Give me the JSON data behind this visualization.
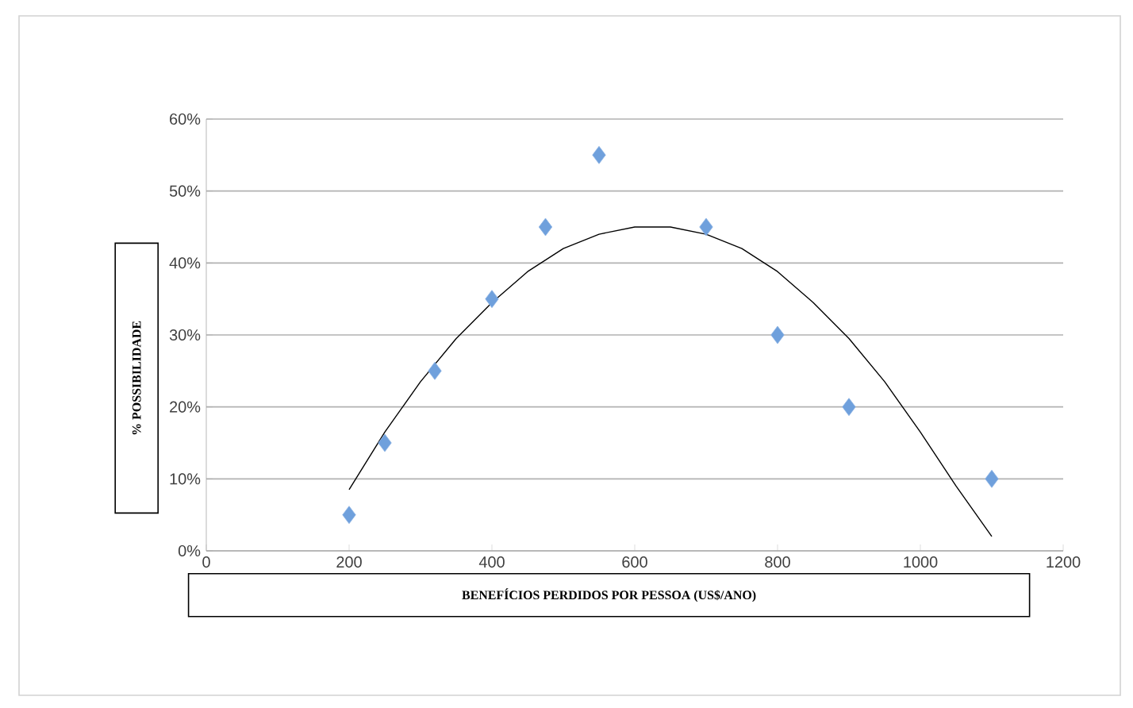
{
  "chart_data": {
    "type": "scatter",
    "xlabel": "BENEFÍCIOS PERDIDOS POR PESSOA (US$/ANO)",
    "ylabel": "% POSSIBILIDADE",
    "xlim": [
      0,
      1200
    ],
    "xticks": [
      0,
      200,
      400,
      600,
      800,
      1000,
      1200
    ],
    "ylim": [
      0,
      60
    ],
    "yticks": [
      {
        "value": 0,
        "label": "0%"
      },
      {
        "value": 10,
        "label": "10%"
      },
      {
        "value": 20,
        "label": "20%"
      },
      {
        "value": 30,
        "label": "30%"
      },
      {
        "value": 40,
        "label": "40%"
      },
      {
        "value": 50,
        "label": "50%"
      },
      {
        "value": 60,
        "label": "60%"
      }
    ],
    "grid": "y",
    "series": [
      {
        "color": "#6fa0dc",
        "marker": "diamond",
        "x": [
          200,
          250,
          320,
          400,
          475,
          550,
          700,
          800,
          900,
          1100
        ],
        "values": [
          5,
          15,
          25,
          35,
          45,
          55,
          45,
          30,
          20,
          10
        ]
      },
      {
        "type": "line",
        "color": "#000000",
        "marker": "none",
        "line_style": "solid",
        "x": [
          200,
          250,
          300,
          350,
          400,
          450,
          500,
          550,
          600,
          650,
          700,
          750,
          800,
          850,
          900,
          950,
          1000,
          1050,
          1100
        ],
        "values": [
          8.5,
          16.5,
          23.5,
          29.5,
          34.5,
          38.8,
          42,
          44,
          45,
          45,
          44,
          42,
          38.8,
          34.5,
          29.5,
          23.5,
          16.5,
          9,
          2
        ]
      }
    ]
  }
}
